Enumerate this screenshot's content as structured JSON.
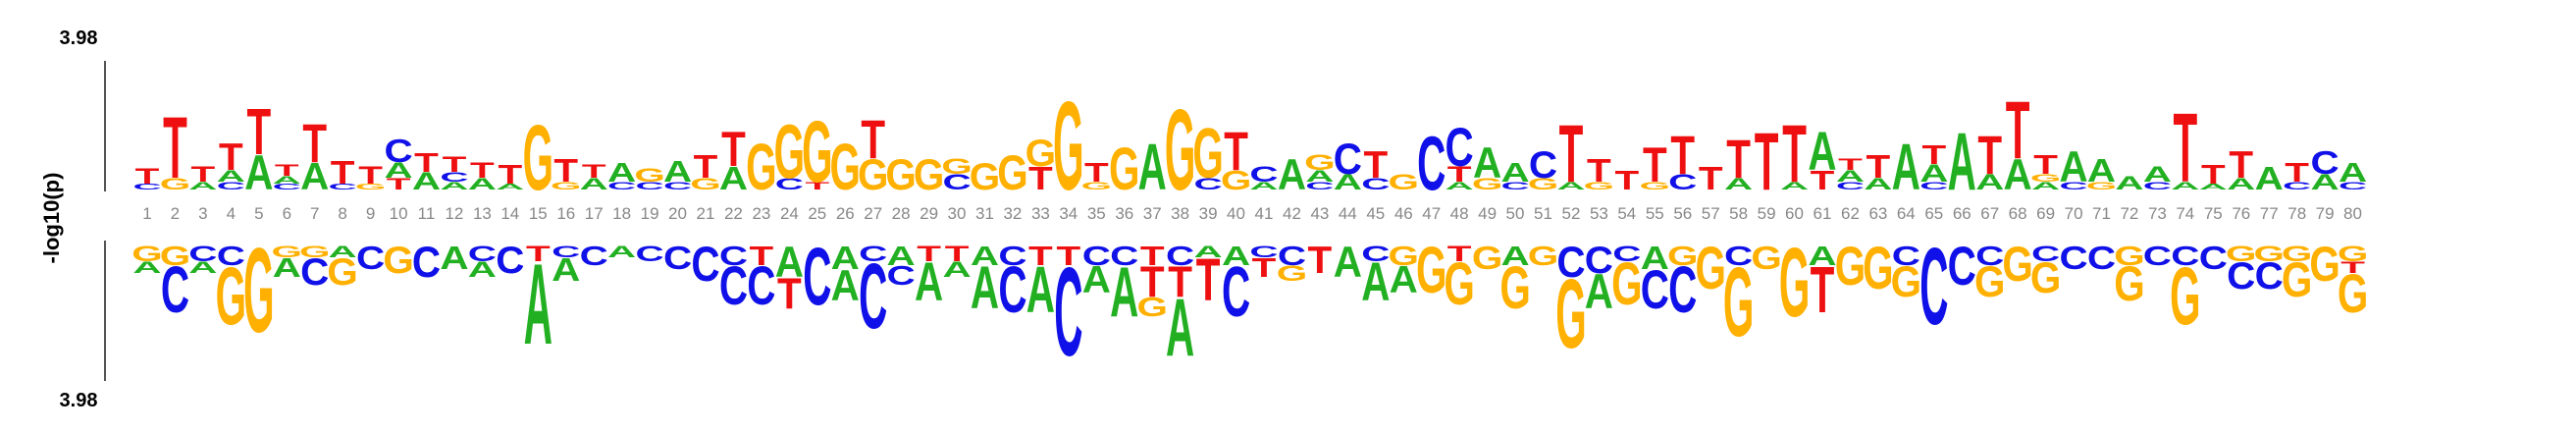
{
  "axis": {
    "ylabel": "-log10(p)",
    "top_max_label": "3.98",
    "bottom_max_label": "3.98",
    "ymax": 3.98
  },
  "colors": {
    "A": "#22b022",
    "C": "#1010e8",
    "G": "#ffb000",
    "T": "#ee1010",
    "axis": "#555555",
    "tick": "#888888"
  },
  "positions": [
    "1",
    "2",
    "3",
    "4",
    "5",
    "6",
    "7",
    "8",
    "9",
    "10",
    "11",
    "12",
    "13",
    "14",
    "15",
    "16",
    "17",
    "18",
    "19",
    "20",
    "21",
    "22",
    "23",
    "24",
    "25",
    "26",
    "27",
    "28",
    "29",
    "30",
    "31",
    "32",
    "33",
    "34",
    "35",
    "36",
    "37",
    "38",
    "39",
    "40",
    "41",
    "42",
    "43",
    "44",
    "45",
    "46",
    "47",
    "48",
    "49",
    "50",
    "51",
    "52",
    "53",
    "54",
    "55",
    "56",
    "57",
    "58",
    "59",
    "60",
    "61",
    "62",
    "63",
    "64",
    "65",
    "66",
    "67",
    "68",
    "69",
    "70",
    "71",
    "72",
    "73",
    "74",
    "75",
    "76",
    "77",
    "78",
    "79",
    "80"
  ],
  "chart_data": {
    "type": "sequence-logo",
    "ylabel": "-log10(p)",
    "ymax": 3.98,
    "enriched": [
      [
        [
          "T",
          0.4
        ],
        [
          "C",
          0.15
        ]
      ],
      [
        [
          "T",
          1.6
        ],
        [
          "G",
          0.3
        ]
      ],
      [
        [
          "T",
          0.4
        ],
        [
          "A",
          0.2
        ]
      ],
      [
        [
          "T",
          0.7
        ],
        [
          "A",
          0.3
        ],
        [
          "C",
          0.2
        ]
      ],
      [
        [
          "T",
          1.2
        ],
        [
          "A",
          0.9
        ]
      ],
      [
        [
          "T",
          0.3
        ],
        [
          "A",
          0.2
        ],
        [
          "C",
          0.15
        ]
      ],
      [
        [
          "T",
          1.0
        ],
        [
          "A",
          0.7
        ]
      ],
      [
        [
          "T",
          0.6
        ],
        [
          "C",
          0.15
        ]
      ],
      [
        [
          "T",
          0.45
        ],
        [
          "G",
          0.15
        ]
      ],
      [
        [
          "C",
          0.6
        ],
        [
          "A",
          0.4
        ],
        [
          "T",
          0.3
        ]
      ],
      [
        [
          "T",
          0.5
        ],
        [
          "A",
          0.45
        ]
      ],
      [
        [
          "T",
          0.4
        ],
        [
          "C",
          0.25
        ],
        [
          "A",
          0.2
        ]
      ],
      [
        [
          "T",
          0.4
        ],
        [
          "A",
          0.3
        ]
      ],
      [
        [
          "T",
          0.5
        ],
        [
          "A",
          0.15
        ]
      ],
      [
        [
          "G",
          1.7
        ]
      ],
      [
        [
          "T",
          0.6
        ],
        [
          "G",
          0.2
        ]
      ],
      [
        [
          "T",
          0.35
        ],
        [
          "A",
          0.3
        ]
      ],
      [
        [
          "A",
          0.5
        ],
        [
          "C",
          0.2
        ]
      ],
      [
        [
          "G",
          0.35
        ],
        [
          "C",
          0.2
        ]
      ],
      [
        [
          "A",
          0.55
        ],
        [
          "C",
          0.2
        ]
      ],
      [
        [
          "T",
          0.6
        ],
        [
          "G",
          0.3
        ]
      ],
      [
        [
          "T",
          0.9
        ],
        [
          "A",
          0.6
        ]
      ],
      [
        [
          "G",
          1.2
        ]
      ],
      [
        [
          "G",
          1.4
        ],
        [
          "C",
          0.3
        ]
      ],
      [
        [
          "G",
          1.6
        ],
        [
          "T",
          0.2
        ]
      ],
      [
        [
          "G",
          1.2
        ]
      ],
      [
        [
          "T",
          1.0
        ],
        [
          "G",
          0.8
        ]
      ],
      [
        [
          "G",
          0.8
        ]
      ],
      [
        [
          "G",
          0.8
        ]
      ],
      [
        [
          "C",
          0.4
        ],
        [
          "G",
          0.4
        ]
      ],
      [
        [
          "G",
          0.7
        ]
      ],
      [
        [
          "G",
          0.9
        ]
      ],
      [
        [
          "T",
          0.6
        ],
        [
          "G",
          0.7
        ]
      ],
      [
        [
          "G",
          2.3
        ]
      ],
      [
        [
          "T",
          0.5
        ],
        [
          "G",
          0.2
        ]
      ],
      [
        [
          "G",
          1.1
        ]
      ],
      [
        [
          "A",
          1.2
        ]
      ],
      [
        [
          "G",
          2.1
        ]
      ],
      [
        [
          "G",
          1.3
        ],
        [
          "C",
          0.3
        ]
      ],
      [
        [
          "T",
          1.0
        ],
        [
          "G",
          0.5
        ]
      ],
      [
        [
          "C",
          0.4
        ],
        [
          "A",
          0.2
        ]
      ],
      [
        [
          "A",
          0.8
        ]
      ],
      [
        [
          "G",
          0.4
        ],
        [
          "A",
          0.3
        ],
        [
          "C",
          0.2
        ]
      ],
      [
        [
          "C",
          0.8
        ],
        [
          "A",
          0.4
        ]
      ],
      [
        [
          "T",
          0.7
        ],
        [
          "C",
          0.3
        ]
      ],
      [
        [
          "G",
          0.4
        ]
      ],
      [
        [
          "C",
          1.4
        ]
      ],
      [
        [
          "C",
          1.0
        ],
        [
          "T",
          0.4
        ],
        [
          "A",
          0.2
        ]
      ],
      [
        [
          "A",
          0.8
        ],
        [
          "G",
          0.3
        ]
      ],
      [
        [
          "A",
          0.5
        ],
        [
          "C",
          0.2
        ]
      ],
      [
        [
          "C",
          0.7
        ],
        [
          "G",
          0.3
        ]
      ],
      [
        [
          "T",
          1.5
        ],
        [
          "A",
          0.2
        ]
      ],
      [
        [
          "T",
          0.6
        ],
        [
          "G",
          0.2
        ]
      ],
      [
        [
          "T",
          0.5
        ]
      ],
      [
        [
          "T",
          0.9
        ],
        [
          "G",
          0.2
        ]
      ],
      [
        [
          "T",
          1.0
        ],
        [
          "C",
          0.4
        ]
      ],
      [
        [
          "T",
          0.6
        ]
      ],
      [
        [
          "T",
          1.0
        ],
        [
          "A",
          0.3
        ]
      ],
      [
        [
          "T",
          1.5
        ]
      ],
      [
        [
          "T",
          1.5
        ],
        [
          "A",
          0.2
        ]
      ],
      [
        [
          "A",
          1.0
        ],
        [
          "T",
          0.5
        ]
      ],
      [
        [
          "A",
          0.3
        ],
        [
          "T",
          0.3
        ],
        [
          "C",
          0.2
        ]
      ],
      [
        [
          "T",
          0.6
        ],
        [
          "A",
          0.3
        ]
      ],
      [
        [
          "A",
          1.2
        ]
      ],
      [
        [
          "T",
          0.5
        ],
        [
          "A",
          0.45
        ],
        [
          "C",
          0.2
        ]
      ],
      [
        [
          "A",
          1.5
        ]
      ],
      [
        [
          "T",
          1.0
        ],
        [
          "A",
          0.4
        ]
      ],
      [
        [
          "T",
          1.5
        ],
        [
          "A",
          0.8
        ]
      ],
      [
        [
          "T",
          0.5
        ],
        [
          "A",
          0.2
        ],
        [
          "G",
          0.2
        ]
      ],
      [
        [
          "A",
          0.8
        ],
        [
          "C",
          0.2
        ]
      ],
      [
        [
          "A",
          0.6
        ],
        [
          "G",
          0.2
        ]
      ],
      [
        [
          "A",
          0.35
        ]
      ],
      [
        [
          "A",
          0.4
        ],
        [
          "C",
          0.2
        ]
      ],
      [
        [
          "T",
          1.8
        ],
        [
          "A",
          0.2
        ]
      ],
      [
        [
          "T",
          0.5
        ],
        [
          "A",
          0.15
        ]
      ],
      [
        [
          "T",
          0.7
        ],
        [
          "A",
          0.3
        ]
      ],
      [
        [
          "A",
          0.6
        ]
      ],
      [
        [
          "T",
          0.5
        ],
        [
          "C",
          0.2
        ]
      ],
      [
        [
          "C",
          0.6
        ],
        [
          "A",
          0.4
        ]
      ],
      [
        [
          "A",
          0.5
        ],
        [
          "C",
          0.2
        ]
      ]
    ],
    "depleted": [
      [
        [
          "G",
          0.4
        ],
        [
          "A",
          0.3
        ]
      ],
      [
        [
          "G",
          0.5
        ],
        [
          "C",
          1.2
        ]
      ],
      [
        [
          "C",
          0.4
        ],
        [
          "A",
          0.3
        ]
      ],
      [
        [
          "C",
          0.5
        ],
        [
          "G",
          1.5
        ]
      ],
      [
        [
          "G",
          2.2
        ]
      ],
      [
        [
          "G",
          0.3
        ],
        [
          "A",
          0.5
        ]
      ],
      [
        [
          "G",
          0.3
        ],
        [
          "C",
          0.7
        ]
      ],
      [
        [
          "A",
          0.3
        ],
        [
          "G",
          0.7
        ]
      ],
      [
        [
          "C",
          0.6
        ]
      ],
      [
        [
          "G",
          0.7
        ]
      ],
      [
        [
          "C",
          0.8
        ]
      ],
      [
        [
          "A",
          0.6
        ]
      ],
      [
        [
          "C",
          0.4
        ],
        [
          "A",
          0.4
        ]
      ],
      [
        [
          "C",
          0.7
        ]
      ],
      [
        [
          "T",
          0.4
        ],
        [
          "A",
          2.1
        ]
      ],
      [
        [
          "C",
          0.3
        ],
        [
          "A",
          0.6
        ]
      ],
      [
        [
          "C",
          0.5
        ]
      ],
      [
        [
          "A",
          0.3
        ]
      ],
      [
        [
          "C",
          0.4
        ]
      ],
      [
        [
          "C",
          0.6
        ]
      ],
      [
        [
          "C",
          0.9
        ]
      ],
      [
        [
          "C",
          0.5
        ],
        [
          "C",
          1.0
        ]
      ],
      [
        [
          "T",
          0.5
        ],
        [
          "C",
          1.0
        ]
      ],
      [
        [
          "A",
          0.8
        ],
        [
          "T",
          0.8
        ]
      ],
      [
        [
          "C",
          1.5
        ]
      ],
      [
        [
          "A",
          0.6
        ],
        [
          "A",
          0.8
        ]
      ],
      [
        [
          "C",
          0.4
        ],
        [
          "C",
          1.7
        ]
      ],
      [
        [
          "A",
          0.5
        ],
        [
          "C",
          0.5
        ]
      ],
      [
        [
          "T",
          0.4
        ],
        [
          "A",
          1.0
        ]
      ],
      [
        [
          "T",
          0.4
        ],
        [
          "A",
          0.4
        ]
      ],
      [
        [
          "A",
          0.5
        ],
        [
          "A",
          1.1
        ]
      ],
      [
        [
          "C",
          0.5
        ],
        [
          "C",
          1.2
        ]
      ],
      [
        [
          "T",
          0.5
        ],
        [
          "A",
          1.2
        ]
      ],
      [
        [
          "T",
          0.5
        ],
        [
          "C",
          2.3
        ]
      ],
      [
        [
          "C",
          0.5
        ],
        [
          "A",
          0.7
        ]
      ],
      [
        [
          "C",
          0.5
        ],
        [
          "A",
          1.3
        ]
      ],
      [
        [
          "T",
          0.5
        ],
        [
          "T",
          0.8
        ],
        [
          "G",
          0.5
        ]
      ],
      [
        [
          "C",
          0.5
        ],
        [
          "T",
          0.8
        ],
        [
          "A",
          1.5
        ]
      ],
      [
        [
          "A",
          0.3
        ],
        [
          "T",
          1.1
        ]
      ],
      [
        [
          "A",
          0.5
        ],
        [
          "C",
          1.3
        ]
      ],
      [
        [
          "C",
          0.3
        ],
        [
          "T",
          0.5
        ]
      ],
      [
        [
          "C",
          0.5
        ],
        [
          "G",
          0.4
        ]
      ],
      [
        [
          "T",
          0.7
        ]
      ],
      [
        [
          "A",
          0.8
        ]
      ],
      [
        [
          "C",
          0.4
        ],
        [
          "A",
          1.0
        ]
      ],
      [
        [
          "G",
          0.5
        ],
        [
          "A",
          0.7
        ]
      ],
      [
        [
          "G",
          1.2
        ]
      ],
      [
        [
          "T",
          0.4
        ],
        [
          "G",
          1.1
        ]
      ],
      [
        [
          "G",
          0.6
        ]
      ],
      [
        [
          "A",
          0.5
        ],
        [
          "G",
          1.1
        ]
      ],
      [
        [
          "G",
          0.5
        ]
      ],
      [
        [
          "C",
          0.8
        ],
        [
          "G",
          1.8
        ]
      ],
      [
        [
          "C",
          0.7
        ],
        [
          "A",
          0.9
        ]
      ],
      [
        [
          "C",
          0.4
        ],
        [
          "G",
          1.1
        ]
      ],
      [
        [
          "A",
          0.6
        ],
        [
          "C",
          1.0
        ]
      ],
      [
        [
          "G",
          0.5
        ],
        [
          "C",
          1.2
        ]
      ],
      [
        [
          "G",
          1.1
        ]
      ],
      [
        [
          "C",
          0.5
        ],
        [
          "G",
          1.8
        ]
      ],
      [
        [
          "G",
          0.6
        ]
      ],
      [
        [
          "G",
          1.8
        ]
      ],
      [
        [
          "A",
          0.5
        ],
        [
          "T",
          1.2
        ]
      ],
      [
        [
          "G",
          1.0
        ]
      ],
      [
        [
          "G",
          1.1
        ]
      ],
      [
        [
          "C",
          0.5
        ],
        [
          "G",
          0.8
        ]
      ],
      [
        [
          "C",
          2.0
        ]
      ],
      [
        [
          "C",
          1.0
        ]
      ],
      [
        [
          "C",
          0.5
        ],
        [
          "G",
          0.8
        ]
      ],
      [
        [
          "G",
          0.9
        ]
      ],
      [
        [
          "C",
          0.4
        ],
        [
          "G",
          0.8
        ]
      ],
      [
        [
          "C",
          0.6
        ]
      ],
      [
        [
          "C",
          0.6
        ]
      ],
      [
        [
          "G",
          0.5
        ],
        [
          "G",
          0.9
        ]
      ],
      [
        [
          "C",
          0.5
        ]
      ],
      [
        [
          "C",
          0.5
        ],
        [
          "G",
          1.5
        ]
      ],
      [
        [
          "C",
          0.6
        ]
      ],
      [
        [
          "G",
          0.4
        ],
        [
          "C",
          0.7
        ]
      ],
      [
        [
          "G",
          0.4
        ],
        [
          "C",
          0.7
        ]
      ],
      [
        [
          "G",
          0.4
        ],
        [
          "G",
          0.9
        ]
      ],
      [
        [
          "G",
          0.9
        ]
      ],
      [
        [
          "G",
          0.4
        ],
        [
          "T",
          0.3
        ],
        [
          "G",
          1.0
        ]
      ]
    ]
  }
}
